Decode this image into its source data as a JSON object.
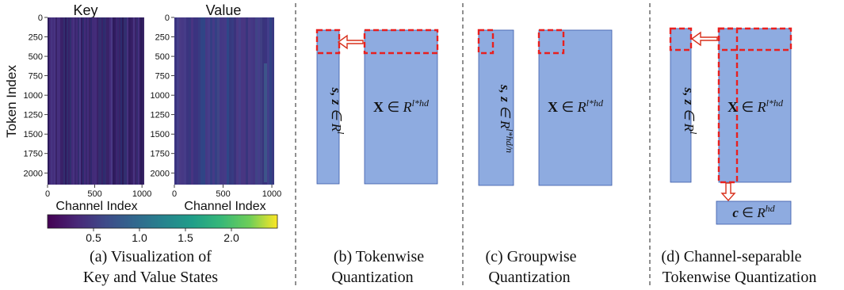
{
  "colors": {
    "bar": "#8eabe0",
    "bar_stroke": "#3a5aa8",
    "dash": "#e8201f",
    "arrow": "#d8301c",
    "divider": "#555555"
  },
  "heatmaps": {
    "token_axis_label": "Token Index",
    "channel_axis_label": "Channel Index",
    "y_ticks": [
      "0",
      "250",
      "500",
      "750",
      "1000",
      "1250",
      "1500",
      "1750",
      "2000"
    ],
    "x_ticks": [
      "0",
      "500",
      "1000"
    ],
    "colorbar_ticks": [
      "0.5",
      "1.0",
      "1.5",
      "2.0"
    ],
    "colormap": "viridis",
    "key": {
      "title": "Key"
    },
    "value": {
      "title": "Value"
    }
  },
  "panels": {
    "a": {
      "caption_line1": "(a) Visualization of",
      "caption_line2": "Key and Value States"
    },
    "b": {
      "caption_line1": "(b) Tokenwise",
      "caption_line2": "Quantization",
      "small_label": "s, z ∈ R^l",
      "big_label": "X ∈ R^{l*hd}"
    },
    "c": {
      "caption_line1": "(c) Groupwise",
      "caption_line2": "Quantization",
      "small_label": "s, z ∈ R^{l*hd/n}",
      "big_label": "X ∈ R^{l*hd}"
    },
    "d": {
      "caption_line1": "(d) Channel-separable",
      "caption_line2": "Tokenwise Quantization",
      "small_label": "s, z ∈ R^l",
      "big_label": "X ∈ R^{l*hd}",
      "channel_label": "c ∈ R^{hd}"
    }
  }
}
